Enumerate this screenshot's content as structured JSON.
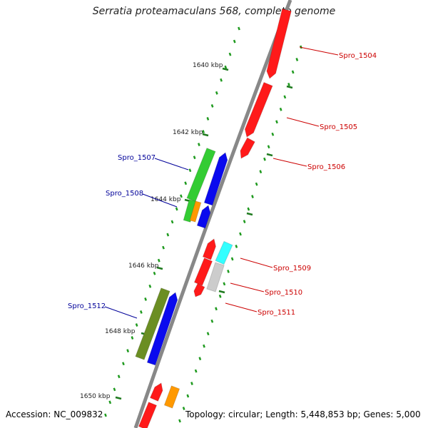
{
  "title": "Serratia proteamaculans 568, complete genome",
  "accession": "Accession: NC_009832",
  "topology": "Topology: circular; Length: 5,448,853 bp; Genes: 5,000",
  "colors": {
    "backbone": "#888888",
    "label_right": "#cc0000",
    "label_left": "#000099",
    "tick": "#1f7a1f",
    "dot": "#1f9a1f",
    "red": "#ff1a1a",
    "blue": "#0a0aee",
    "green": "#33cc33",
    "orange": "#ff9900",
    "cyan": "#33ffff",
    "gray": "#cccccc",
    "olive": "#6b8e23"
  },
  "ticks": [
    "1640 kbp",
    "1642 kbp",
    "1644 kbp",
    "1646 kbp",
    "1648 kbp",
    "1650 kbp"
  ],
  "genes": {
    "right": [
      "Spro_1504",
      "Spro_1505",
      "Spro_1506",
      "Spro_1509",
      "Spro_1510",
      "Spro_1511"
    ],
    "left": [
      "Spro_1507",
      "Spro_1508",
      "Spro_1512"
    ]
  }
}
